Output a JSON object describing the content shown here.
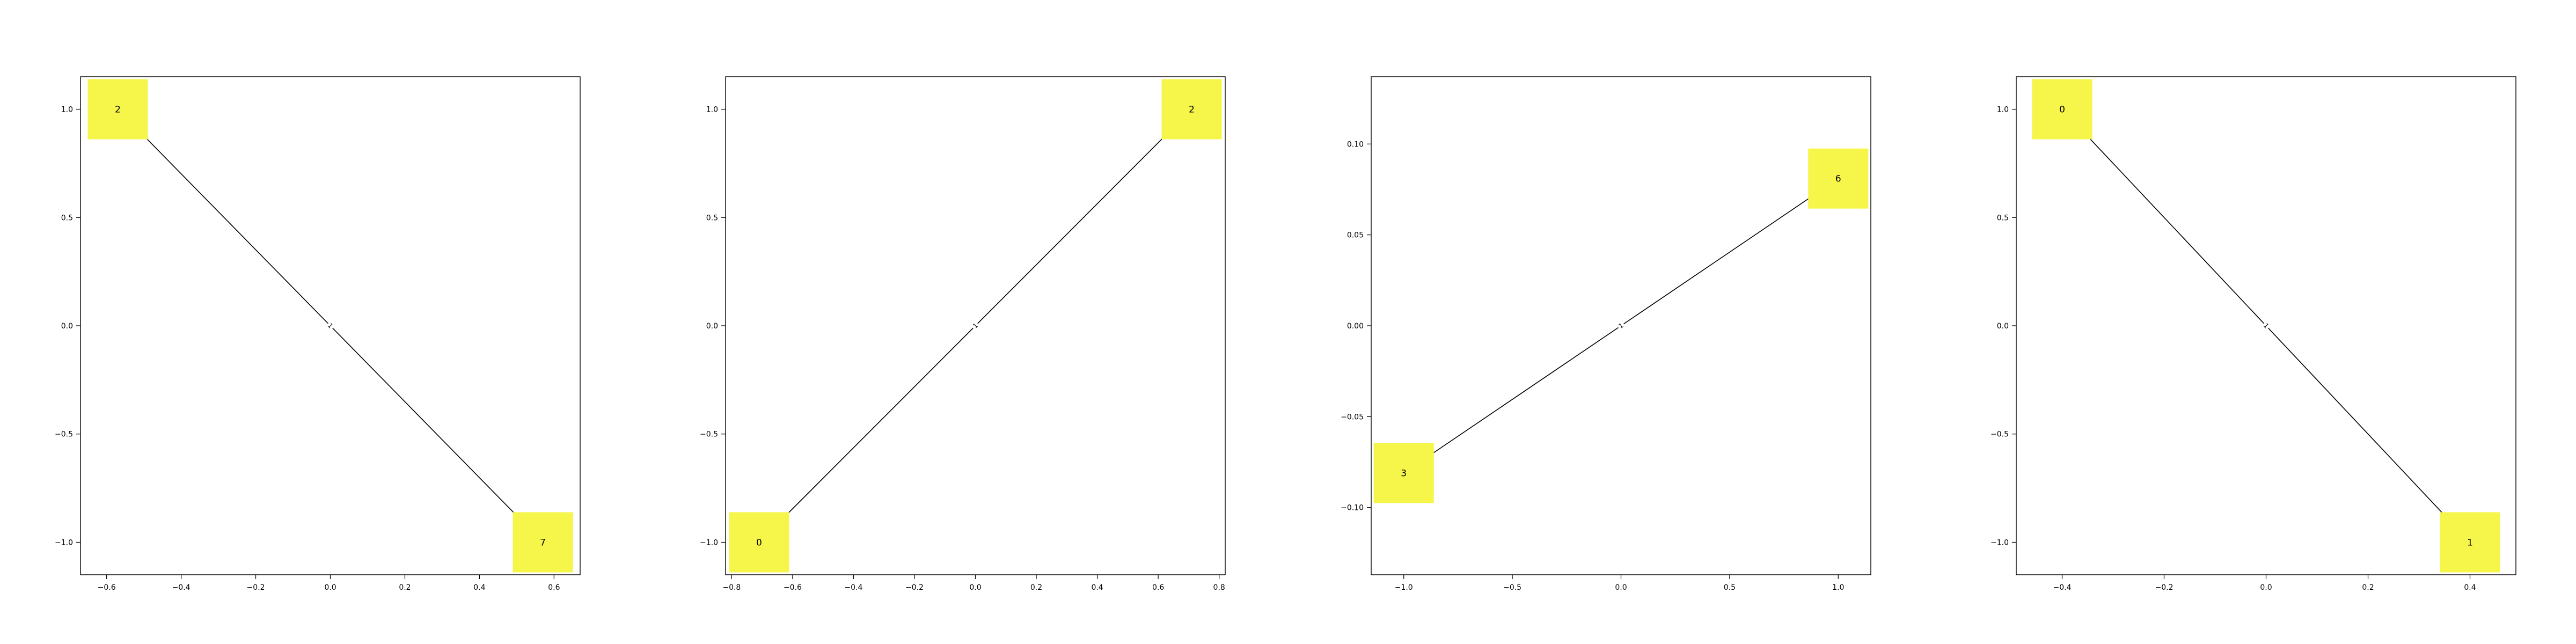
{
  "chart_data": [
    {
      "type": "network",
      "xlim": [
        -0.67,
        0.67
      ],
      "ylim": [
        -1.15,
        1.15
      ],
      "xticks": [
        -0.6,
        -0.4,
        -0.2,
        0.0,
        0.2,
        0.4,
        0.6
      ],
      "xtick_labels": [
        "−0.6",
        "−0.4",
        "−0.2",
        "0.0",
        "0.2",
        "0.4",
        "0.6"
      ],
      "yticks": [
        -1.0,
        -0.5,
        0.0,
        0.5,
        1.0
      ],
      "ytick_labels": [
        "−1.0",
        "−0.5",
        "0.0",
        "0.5",
        "1.0"
      ],
      "nodes": [
        {
          "label": "2",
          "x": -0.57,
          "y": 1.0
        },
        {
          "label": "7",
          "x": 0.57,
          "y": -1.0
        }
      ],
      "edges": [
        {
          "source": 0,
          "target": 1,
          "label": "1"
        }
      ]
    },
    {
      "type": "network",
      "xlim": [
        -0.82,
        0.82
      ],
      "ylim": [
        -1.15,
        1.15
      ],
      "xticks": [
        -0.8,
        -0.6,
        -0.4,
        -0.2,
        0.0,
        0.2,
        0.4,
        0.6,
        0.8
      ],
      "xtick_labels": [
        "−0.8",
        "−0.6",
        "−0.4",
        "−0.2",
        "0.0",
        "0.2",
        "0.4",
        "0.6",
        "0.8"
      ],
      "yticks": [
        -1.0,
        -0.5,
        0.0,
        0.5,
        1.0
      ],
      "ytick_labels": [
        "−1.0",
        "−0.5",
        "0.0",
        "0.5",
        "1.0"
      ],
      "nodes": [
        {
          "label": "0",
          "x": -0.71,
          "y": -1.0
        },
        {
          "label": "2",
          "x": 0.71,
          "y": 1.0
        }
      ],
      "edges": [
        {
          "source": 0,
          "target": 1,
          "label": "1"
        }
      ]
    },
    {
      "type": "network",
      "xlim": [
        -1.15,
        1.15
      ],
      "ylim": [
        -0.137,
        0.137
      ],
      "xticks": [
        -1.0,
        -0.5,
        0.0,
        0.5,
        1.0
      ],
      "xtick_labels": [
        "−1.0",
        "−0.5",
        "0.0",
        "0.5",
        "1.0"
      ],
      "yticks": [
        -0.1,
        -0.05,
        0.0,
        0.05,
        0.1
      ],
      "ytick_labels": [
        "−0.10",
        "−0.05",
        "0.00",
        "0.05",
        "0.10"
      ],
      "nodes": [
        {
          "label": "3",
          "x": -1.0,
          "y": -0.081
        },
        {
          "label": "6",
          "x": 1.0,
          "y": 0.081
        }
      ],
      "edges": [
        {
          "source": 0,
          "target": 1,
          "label": "1"
        }
      ]
    },
    {
      "type": "network",
      "xlim": [
        -0.49,
        0.49
      ],
      "ylim": [
        -1.15,
        1.15
      ],
      "xticks": [
        -0.4,
        -0.2,
        0.0,
        0.2,
        0.4
      ],
      "xtick_labels": [
        "−0.4",
        "−0.2",
        "0.0",
        "0.2",
        "0.4"
      ],
      "yticks": [
        -1.0,
        -0.5,
        0.0,
        0.5,
        1.0
      ],
      "ytick_labels": [
        "−1.0",
        "−0.5",
        "0.0",
        "0.5",
        "1.0"
      ],
      "nodes": [
        {
          "label": "0",
          "x": -0.4,
          "y": 1.0
        },
        {
          "label": "1",
          "x": 0.4,
          "y": -1.0
        }
      ],
      "edges": [
        {
          "source": 0,
          "target": 1,
          "label": "1"
        }
      ]
    }
  ],
  "style": {
    "node_color": "#f5f54a",
    "edge_color": "#000000",
    "axis_color": "#000000",
    "background": "#ffffff"
  }
}
